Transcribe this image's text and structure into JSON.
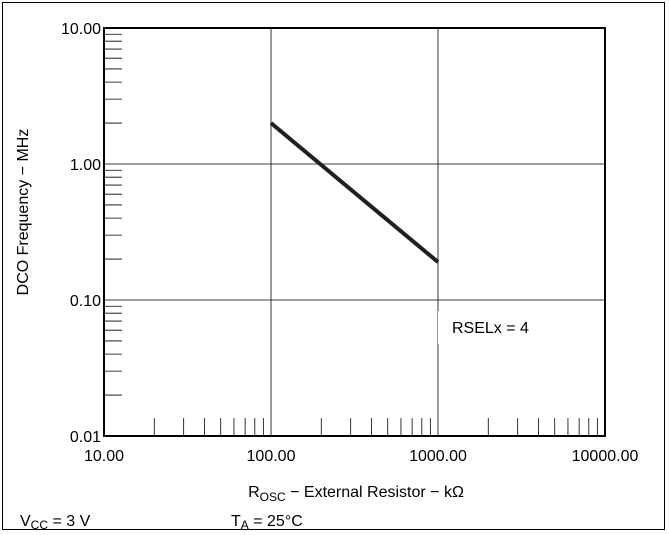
{
  "chart_data": {
    "type": "line",
    "title": "",
    "xlabel_main": "R",
    "xlabel_sub": "OSC",
    "xlabel_rest": " − External Resistor − kΩ",
    "ylabel": "DCO Frequency − MHz",
    "xscale": "log",
    "yscale": "log",
    "xlim": [
      10,
      10000
    ],
    "ylim": [
      0.01,
      10
    ],
    "x_ticks": [
      "10.00",
      "100.00",
      "1000.00",
      "10000.00"
    ],
    "y_ticks": [
      "0.01",
      "0.10",
      "1.00",
      "10.00"
    ],
    "grid": true,
    "annotation": "RSELx = 4",
    "series": [
      {
        "x": [
          100,
          1000
        ],
        "y": [
          2.0,
          0.19
        ]
      }
    ]
  },
  "conditions": {
    "vcc_main": "V",
    "vcc_sub": "CC",
    "vcc_rest": " = 3 V",
    "ta_main": "T",
    "ta_sub": "A",
    "ta_rest": " = 25°C"
  },
  "colors": {
    "line": "#231f20",
    "grid": "#000000"
  }
}
